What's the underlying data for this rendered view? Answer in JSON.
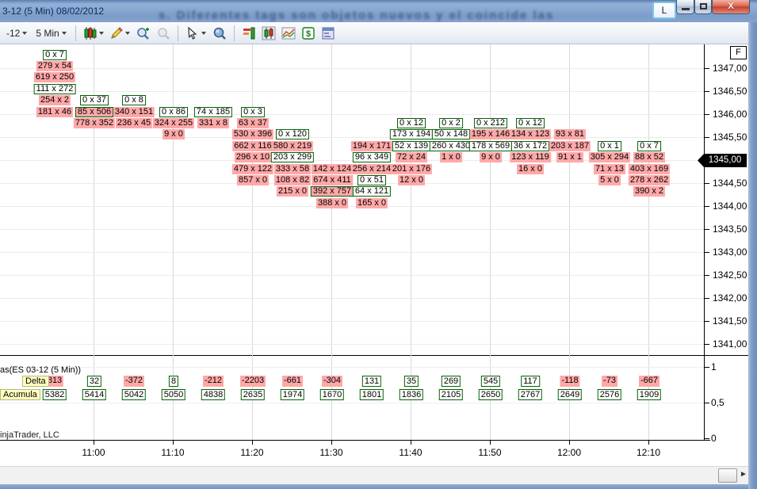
{
  "window": {
    "title": "3-12 (5 Min)  08/02/2012",
    "background_blur_text": "s. Diferentes tags son objetos nuevos y el coincide las",
    "link_button": "L",
    "close_glyph": "x"
  },
  "toolbar": {
    "instrument": "-12",
    "interval": "5 Min",
    "icons": [
      "chart-style-candlestick",
      "drawing-tools-pencil",
      "zoom-in",
      "zoom-out",
      "cursor-pointer",
      "data-box",
      "static-price-bars",
      "chart-trader",
      "indicators",
      "account-dollar",
      "chart-properties"
    ]
  },
  "chart": {
    "price_axis": {
      "fix_button": "F",
      "labels": [
        "1347,00",
        "1346,50",
        "1346,00",
        "1345,50",
        "1345,00",
        "1344,50",
        "1344,00",
        "1343,50",
        "1343,00",
        "1342,50",
        "1342,00",
        "1341,50",
        "1341,00"
      ],
      "marker": "1345,00"
    },
    "time_axis": {
      "labels": [
        "11:00",
        "11:10",
        "11:20",
        "11:30",
        "11:40",
        "11:50",
        "12:00",
        "12:10"
      ]
    },
    "lower_axis": {
      "labels": [
        "1",
        "0,5",
        "0"
      ]
    },
    "watermark": "injaTrader, LLC",
    "cells": [
      {
        "bar": 1,
        "row": 0,
        "text": "0 x 7",
        "type": "ask"
      },
      {
        "bar": 1,
        "row": 1,
        "text": "279 x 54",
        "type": "bid"
      },
      {
        "bar": 1,
        "row": 2,
        "text": "619 x 250",
        "type": "bid"
      },
      {
        "bar": 1,
        "row": 3,
        "text": "111 x 272",
        "type": "ask"
      },
      {
        "bar": 1,
        "row": 4,
        "text": "254 x 2",
        "type": "bid"
      },
      {
        "bar": 1,
        "row": 5,
        "text": "181 x 46",
        "type": "bid"
      },
      {
        "bar": 2,
        "row": 4,
        "text": "0 x 37",
        "type": "ask"
      },
      {
        "bar": 2,
        "row": 5,
        "text": "85 x 506",
        "type": "mix"
      },
      {
        "bar": 2,
        "row": 6,
        "text": "778 x 352",
        "type": "bid"
      },
      {
        "bar": 3,
        "row": 4,
        "text": "0 x 8",
        "type": "ask"
      },
      {
        "bar": 3,
        "row": 5,
        "text": "340 x 151",
        "type": "bid"
      },
      {
        "bar": 3,
        "row": 6,
        "text": "236 x 45",
        "type": "bid"
      },
      {
        "bar": 4,
        "row": 5,
        "text": "0 x 86",
        "type": "ask"
      },
      {
        "bar": 4,
        "row": 6,
        "text": "324 x 255",
        "type": "bid"
      },
      {
        "bar": 4,
        "row": 7,
        "text": "9 x 0",
        "type": "bid"
      },
      {
        "bar": 5,
        "row": 5,
        "text": "74 x 185",
        "type": "ask"
      },
      {
        "bar": 5,
        "row": 6,
        "text": "331 x 8",
        "type": "bid"
      },
      {
        "bar": 6,
        "row": 5,
        "text": "0 x 3",
        "type": "ask"
      },
      {
        "bar": 6,
        "row": 6,
        "text": "63 x 37",
        "type": "bid"
      },
      {
        "bar": 6,
        "row": 7,
        "text": "530 x 396",
        "type": "bid"
      },
      {
        "bar": 6,
        "row": 8,
        "text": "662 x 116",
        "type": "bid"
      },
      {
        "bar": 6,
        "row": 9,
        "text": "296 x 10",
        "type": "bid"
      },
      {
        "bar": 6,
        "row": 10,
        "text": "479 x 122",
        "type": "bid"
      },
      {
        "bar": 6,
        "row": 11,
        "text": "857 x 0",
        "type": "bid"
      },
      {
        "bar": 7,
        "row": 7,
        "text": "0 x 120",
        "type": "ask"
      },
      {
        "bar": 7,
        "row": 8,
        "text": "580 x 219",
        "type": "bid"
      },
      {
        "bar": 7,
        "row": 9,
        "text": "203 x 299",
        "type": "ask"
      },
      {
        "bar": 7,
        "row": 10,
        "text": "333 x 58",
        "type": "bid"
      },
      {
        "bar": 7,
        "row": 11,
        "text": "108 x 82",
        "type": "bid"
      },
      {
        "bar": 7,
        "row": 12,
        "text": "215 x 0",
        "type": "bid"
      },
      {
        "bar": 8,
        "row": 10,
        "text": "142 x 124",
        "type": "bid"
      },
      {
        "bar": 8,
        "row": 11,
        "text": "674 x 411",
        "type": "bid"
      },
      {
        "bar": 8,
        "row": 12,
        "text": "392 x 757",
        "type": "mix"
      },
      {
        "bar": 8,
        "row": 13,
        "text": "388 x 0",
        "type": "bid"
      },
      {
        "bar": 9,
        "row": 8,
        "text": "194 x 171",
        "type": "bid"
      },
      {
        "bar": 9,
        "row": 9,
        "text": "96 x 349",
        "type": "ask"
      },
      {
        "bar": 9,
        "row": 10,
        "text": "256 x 214",
        "type": "bid"
      },
      {
        "bar": 9,
        "row": 11,
        "text": "0 x 51",
        "type": "ask"
      },
      {
        "bar": 9,
        "row": 12,
        "text": "64 x 121",
        "type": "ask"
      },
      {
        "bar": 9,
        "row": 13,
        "text": "165 x 0",
        "type": "bid"
      },
      {
        "bar": 10,
        "row": 6,
        "text": "0 x 12",
        "type": "ask"
      },
      {
        "bar": 10,
        "row": 7,
        "text": "173 x 194",
        "type": "ask"
      },
      {
        "bar": 10,
        "row": 8,
        "text": "52 x 139",
        "type": "ask"
      },
      {
        "bar": 10,
        "row": 9,
        "text": "72 x 24",
        "type": "bid"
      },
      {
        "bar": 10,
        "row": 10,
        "text": "201 x 176",
        "type": "bid"
      },
      {
        "bar": 10,
        "row": 11,
        "text": "12 x 0",
        "type": "bid"
      },
      {
        "bar": 11,
        "row": 6,
        "text": "0 x 2",
        "type": "ask"
      },
      {
        "bar": 11,
        "row": 7,
        "text": "50 x 148",
        "type": "ask"
      },
      {
        "bar": 11,
        "row": 8,
        "text": "260 x 430",
        "type": "ask"
      },
      {
        "bar": 11,
        "row": 9,
        "text": "1 x 0",
        "type": "bid"
      },
      {
        "bar": 12,
        "row": 6,
        "text": "0 x 212",
        "type": "ask"
      },
      {
        "bar": 12,
        "row": 7,
        "text": "195 x 146",
        "type": "bid"
      },
      {
        "bar": 12,
        "row": 8,
        "text": "178 x 569",
        "type": "ask"
      },
      {
        "bar": 12,
        "row": 9,
        "text": "9 x 0",
        "type": "bid"
      },
      {
        "bar": 13,
        "row": 6,
        "text": "0 x 12",
        "type": "ask"
      },
      {
        "bar": 13,
        "row": 7,
        "text": "134 x 123",
        "type": "bid"
      },
      {
        "bar": 13,
        "row": 8,
        "text": "36 x 172",
        "type": "ask"
      },
      {
        "bar": 13,
        "row": 9,
        "text": "123 x 119",
        "type": "bid"
      },
      {
        "bar": 13,
        "row": 10,
        "text": "16 x 0",
        "type": "bid"
      },
      {
        "bar": 14,
        "row": 7,
        "text": "93 x 81",
        "type": "bid"
      },
      {
        "bar": 14,
        "row": 8,
        "text": "203 x 187",
        "type": "bid"
      },
      {
        "bar": 14,
        "row": 9,
        "text": "91 x 1",
        "type": "bid"
      },
      {
        "bar": 15,
        "row": 8,
        "text": "0 x 1",
        "type": "ask"
      },
      {
        "bar": 15,
        "row": 9,
        "text": "305 x 294",
        "type": "bid"
      },
      {
        "bar": 15,
        "row": 10,
        "text": "71 x 13",
        "type": "bid"
      },
      {
        "bar": 15,
        "row": 11,
        "text": "5 x 0",
        "type": "bid"
      },
      {
        "bar": 16,
        "row": 8,
        "text": "0 x 7",
        "type": "ask"
      },
      {
        "bar": 16,
        "row": 9,
        "text": "88 x 52",
        "type": "bid"
      },
      {
        "bar": 16,
        "row": 10,
        "text": "403 x 169",
        "type": "bid"
      },
      {
        "bar": 16,
        "row": 11,
        "text": "278 x 262",
        "type": "bid"
      },
      {
        "bar": 16,
        "row": 12,
        "text": "390 x 2",
        "type": "bid"
      }
    ]
  },
  "panel2": {
    "label": "as(ES 03-12 (5 Min))",
    "delta_label": "Delta",
    "accum_label": "Acumula",
    "delta": [
      {
        "text": "813",
        "neg": true
      },
      {
        "text": "32",
        "neg": false
      },
      {
        "text": "-372",
        "neg": true
      },
      {
        "text": "8",
        "neg": false
      },
      {
        "text": "-212",
        "neg": true
      },
      {
        "text": "-2203",
        "neg": true
      },
      {
        "text": "-661",
        "neg": true
      },
      {
        "text": "-304",
        "neg": true
      },
      {
        "text": "131",
        "neg": false
      },
      {
        "text": "35",
        "neg": false
      },
      {
        "text": "269",
        "neg": false
      },
      {
        "text": "545",
        "neg": false
      },
      {
        "text": "117",
        "neg": false
      },
      {
        "text": "-118",
        "neg": true
      },
      {
        "text": "-73",
        "neg": true
      },
      {
        "text": "-667",
        "neg": true
      }
    ],
    "accum": [
      "5382",
      "5414",
      "5042",
      "5050",
      "4838",
      "2635",
      "1974",
      "1670",
      "1801",
      "1836",
      "2105",
      "2650",
      "2767",
      "2649",
      "2576",
      "1909"
    ]
  },
  "colors": {
    "bid_pink": "#FFA8A8",
    "ask_green_border": "#046104",
    "label_yellow": "#FFFFC0",
    "titlebar_blue": "#86A4CF",
    "marker_black": "#000000"
  }
}
